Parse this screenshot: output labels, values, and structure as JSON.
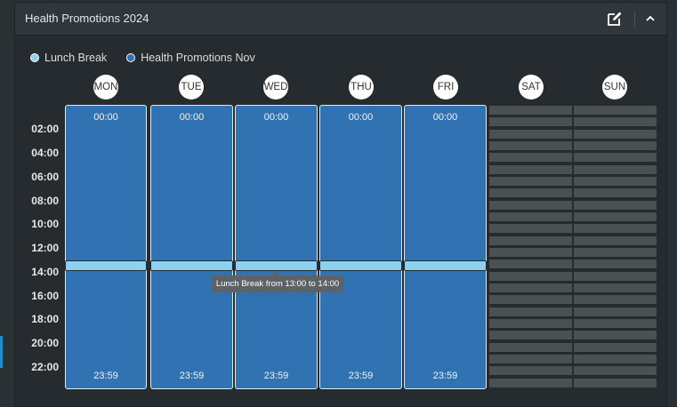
{
  "panel": {
    "title": "Health Promotions 2024",
    "edit_icon": "edit-icon",
    "collapse_icon": "chevron-up-icon"
  },
  "legend": [
    {
      "label": "Lunch Break",
      "color": "#8dd1ef"
    },
    {
      "label": "Health Promotions Nov",
      "color": "#3172b2"
    }
  ],
  "time_axis": [
    "02:00",
    "04:00",
    "06:00",
    "08:00",
    "10:00",
    "12:00",
    "14:00",
    "16:00",
    "18:00",
    "20:00",
    "22:00"
  ],
  "days": [
    {
      "label": "MON",
      "active": true,
      "start": "00:00",
      "end": "23:59"
    },
    {
      "label": "TUE",
      "active": true,
      "start": "00:00",
      "end": "23:59"
    },
    {
      "label": "WED",
      "active": true,
      "start": "00:00",
      "end": "23:59"
    },
    {
      "label": "THU",
      "active": true,
      "start": "00:00",
      "end": "23:59"
    },
    {
      "label": "FRI",
      "active": true,
      "start": "00:00",
      "end": "23:59"
    },
    {
      "label": "SAT",
      "active": false
    },
    {
      "label": "SUN",
      "active": false
    }
  ],
  "tooltip": {
    "text": "Lunch Break from 13:00 to 14:00"
  }
}
